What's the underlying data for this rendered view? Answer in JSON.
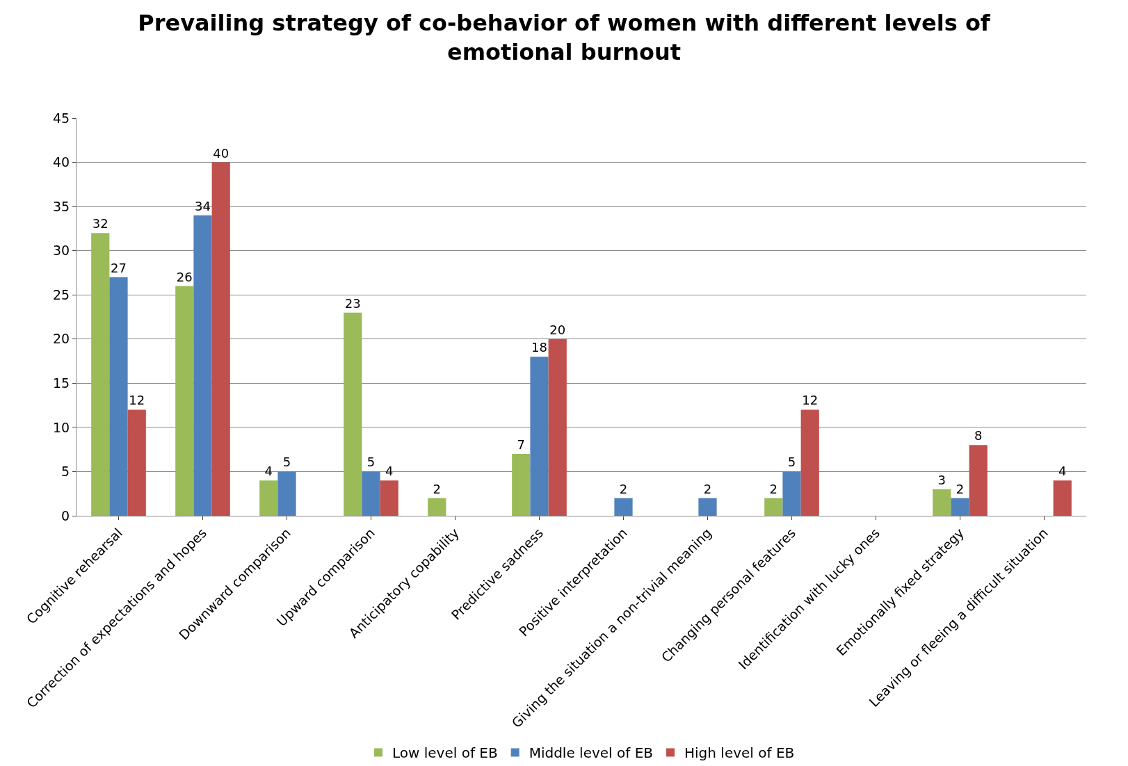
{
  "chart_data": {
    "type": "bar",
    "title": "Prevailing strategy of co-behavior of women with different levels of emotional burnout",
    "categories": [
      "Cognitive rehearsal",
      "Correction of expectations and hopes",
      "Downward comparison",
      "Upward comparison",
      "Anticipatory copability",
      "Predictive sadness",
      "Positive interpretation",
      "Giving the situation a non-trivial meaning",
      "Changing personal features",
      "Identification with lucky ones",
      "Emotionally fixed strategy",
      "Leaving or fleeing a difficult situation"
    ],
    "series": [
      {
        "name": "Low level of EB",
        "color": "#9bbb59",
        "values": [
          32,
          26,
          4,
          23,
          2,
          7,
          null,
          null,
          2,
          null,
          3,
          null
        ]
      },
      {
        "name": "Middle level of EB",
        "color": "#4f81bd",
        "values": [
          27,
          34,
          5,
          5,
          null,
          18,
          2,
          2,
          5,
          null,
          2,
          null
        ]
      },
      {
        "name": "High level of EB",
        "color": "#c0504d",
        "values": [
          12,
          40,
          null,
          4,
          null,
          20,
          null,
          null,
          12,
          null,
          8,
          4
        ]
      }
    ],
    "ylim": [
      0,
      45
    ],
    "yticks": [
      0,
      5,
      10,
      15,
      20,
      25,
      30,
      35,
      40,
      45
    ],
    "grid": "y",
    "legend": "bottom",
    "data_labels": true
  }
}
